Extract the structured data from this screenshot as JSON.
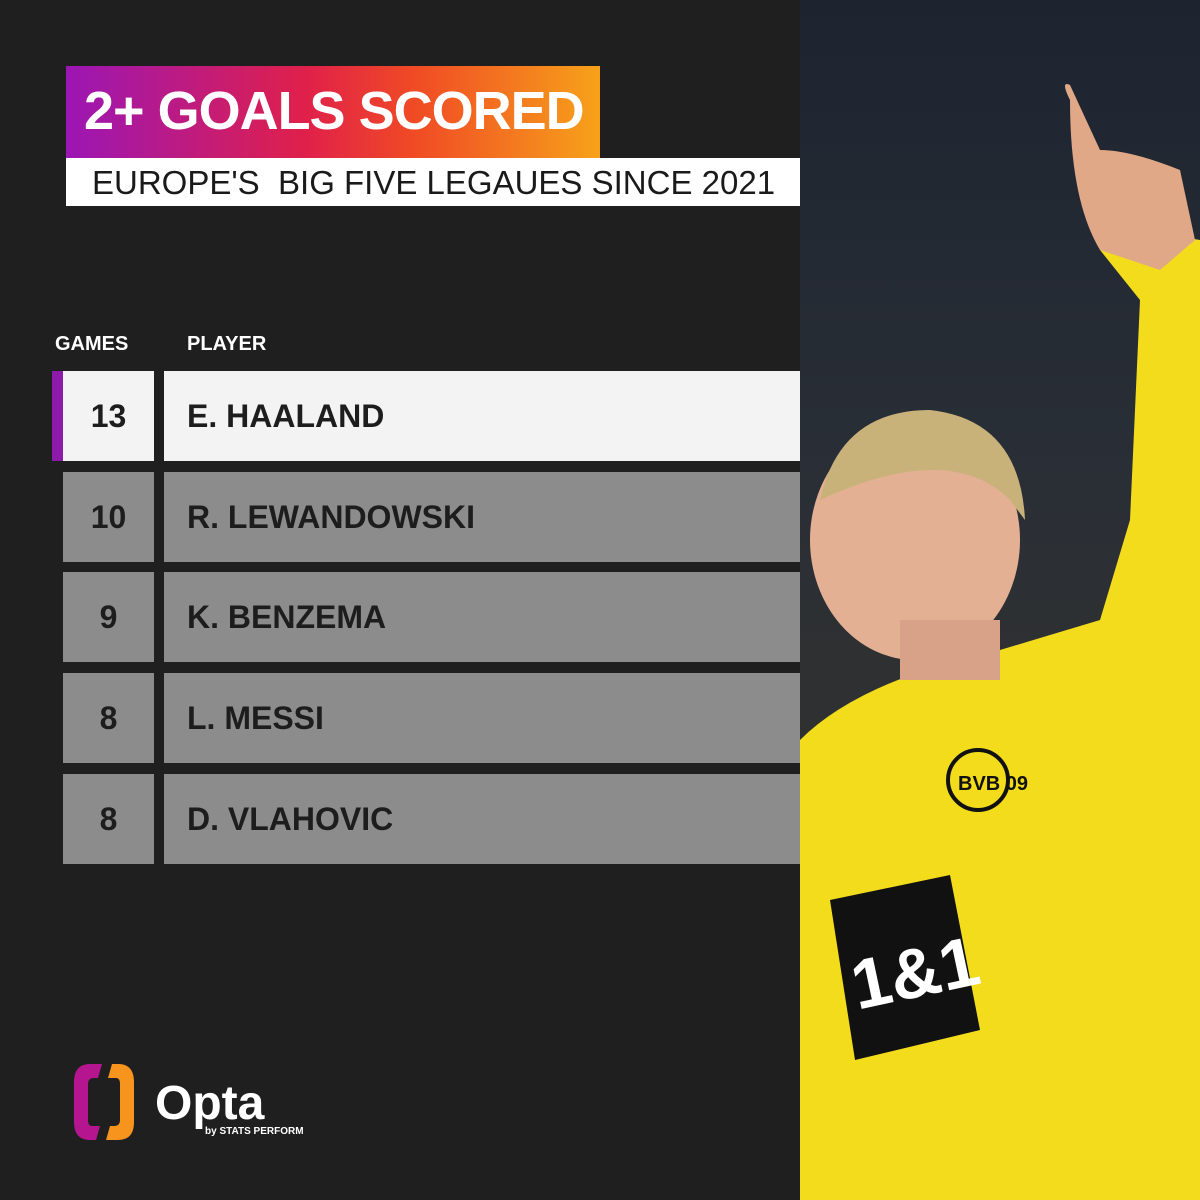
{
  "header": {
    "title": "2+ GOALS SCORED",
    "subtitle": "EUROPE'S  BIG FIVE LEGAUES SINCE 2021"
  },
  "table": {
    "columns": [
      "GAMES",
      "PLAYER"
    ],
    "rows": [
      {
        "games": "13",
        "player": "E. HAALAND",
        "highlighted": true
      },
      {
        "games": "10",
        "player": "R. LEWANDOWSKI"
      },
      {
        "games": "9",
        "player": "K. BENZEMA"
      },
      {
        "games": "8",
        "player": "L. MESSI"
      },
      {
        "games": "8",
        "player": "D. VLAHOVIC"
      }
    ]
  },
  "brand": {
    "name": "Opta",
    "tagline": "by STATS PERFORM"
  },
  "photo": {
    "sponsor": "1&1",
    "crest": "BVB 09"
  },
  "colors": {
    "background": "#1f1f1f",
    "row": "#8c8c8c",
    "highlight": "#f3f3f3",
    "accent": "#8d1aa8",
    "gradient_start": "#9b16b5",
    "gradient_end": "#f7a21a",
    "kit": "#f5e11c"
  }
}
